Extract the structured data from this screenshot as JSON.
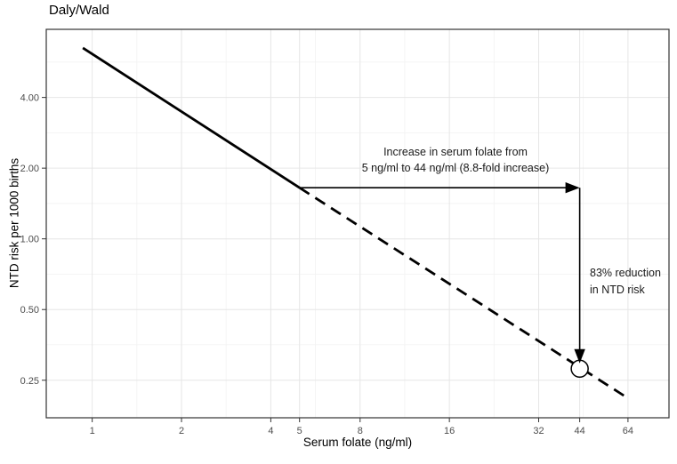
{
  "title": "Daly/Wald",
  "chart_data": {
    "type": "line",
    "title": "Daly/Wald",
    "xlabel": "Serum folate (ng/ml)",
    "ylabel": "NTD risk per 1000 births",
    "x_scale": "log",
    "y_scale": "log",
    "x_domain": [
      0.7,
      88
    ],
    "y_domain": [
      0.173,
      7.8
    ],
    "x_ticks": [
      1,
      2,
      4,
      5,
      8,
      16,
      32,
      44,
      64
    ],
    "x_tick_labels": [
      "1",
      "2",
      "4",
      "5",
      "8",
      "16",
      "32",
      "44",
      "64"
    ],
    "x_minor": [
      1.414,
      2.828,
      5.657,
      11.314,
      22.627,
      45.255
    ],
    "y_ticks": [
      0.25,
      0.5,
      1.0,
      2.0,
      4.0
    ],
    "y_tick_labels": [
      "0.25",
      "0.50",
      "1.00",
      "2.00",
      "4.00"
    ],
    "y_minor": [
      0.354,
      0.707,
      1.414,
      2.828,
      5.657
    ],
    "grid": true,
    "legend": "none",
    "series": [
      {
        "name": "observed-range",
        "style": "solid",
        "points": [
          [
            0.93,
            6.5
          ],
          [
            5,
            1.65
          ]
        ]
      },
      {
        "name": "extrapolated-range",
        "style": "dashed",
        "points": [
          [
            5,
            1.65
          ],
          [
            62,
            0.215
          ]
        ]
      }
    ],
    "marker": {
      "x": 44,
      "y": 0.28,
      "shape": "open-circle"
    },
    "annotations": {
      "horizontal_arrow": {
        "from": [
          5,
          1.65
        ],
        "to": [
          44,
          1.65
        ]
      },
      "vertical_arrow": {
        "from": [
          44,
          1.65
        ],
        "to": [
          44,
          0.295
        ]
      },
      "arrow_label_line1": "Increase in serum folate from",
      "arrow_label_line2": "5 ng/ml to 44 ng/ml (8.8-fold increase)",
      "reduction_label_line1": "83% reduction",
      "reduction_label_line2": "in NTD risk"
    },
    "colors": {
      "line": "#000000",
      "grid_major": "#e6e6e6",
      "grid_minor": "#f2f2f2",
      "tick_text": "#4d4d4d",
      "panel_border": "#333333",
      "background": "#ffffff"
    }
  }
}
